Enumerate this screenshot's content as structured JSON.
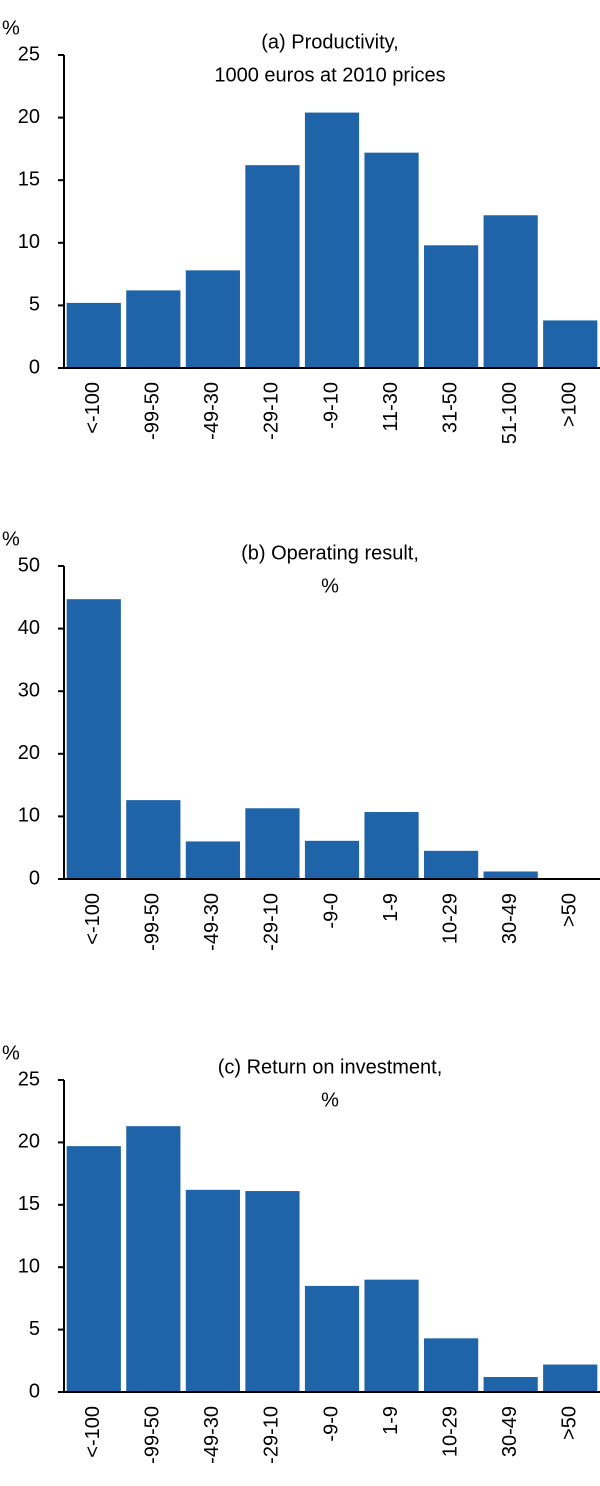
{
  "chart_data": [
    {
      "type": "bar",
      "title": [
        "(a) Productivity,",
        "1000 euros at 2010 prices"
      ],
      "y_label": "%",
      "categories": [
        "<-100",
        "-99-50",
        "-49-30",
        "-29-10",
        "-9-10",
        "11-30",
        "31-50",
        "51-100",
        ">100"
      ],
      "values": [
        5.2,
        6.2,
        7.8,
        16.2,
        20.4,
        17.2,
        9.8,
        12.2,
        3.8
      ],
      "color": "#1f64a8",
      "ylim": [
        0,
        25
      ],
      "yticks": [
        0,
        5,
        10,
        15,
        20,
        25
      ]
    },
    {
      "type": "bar",
      "title": [
        "(b) Operating result,",
        "%"
      ],
      "y_label": "%",
      "categories": [
        "<-100",
        "-99-50",
        "-49-30",
        "-29-10",
        "-9-0",
        "1-9",
        "10-29",
        "30-49",
        ">50"
      ],
      "values": [
        44.7,
        12.6,
        6.0,
        11.3,
        6.1,
        10.7,
        4.5,
        1.2,
        0
      ],
      "color": "#1f64a8",
      "ylim": [
        0,
        50
      ],
      "yticks": [
        0,
        10,
        20,
        30,
        40,
        50
      ]
    },
    {
      "type": "bar",
      "title": [
        "(c) Return on investment,",
        "%"
      ],
      "y_label": "%",
      "categories": [
        "<-100",
        "-99-50",
        "-49-30",
        "-29-10",
        "-9-0",
        "1-9",
        "10-29",
        "30-49",
        ">50"
      ],
      "values": [
        19.7,
        21.3,
        16.2,
        16.1,
        8.5,
        9.0,
        4.3,
        1.2,
        2.2
      ],
      "color": "#1f64a8",
      "ylim": [
        0,
        25
      ],
      "yticks": [
        0,
        5,
        10,
        15,
        20,
        25
      ]
    }
  ]
}
